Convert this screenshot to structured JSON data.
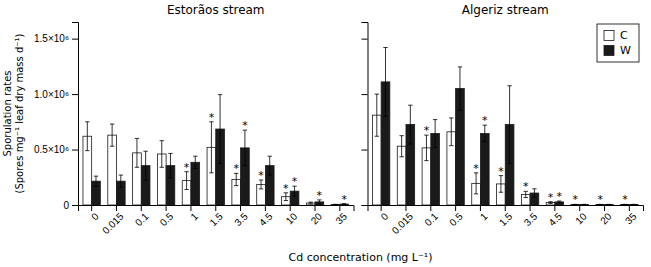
{
  "chart_data": [
    {
      "type": "bar",
      "title": "Estorãos stream",
      "xlabel": "Cd concentration (mg L⁻¹)",
      "ylabel": [
        "Sporulation rates",
        "(Spores mg⁻¹ leaf dry mass d⁻¹)"
      ],
      "categories": [
        "0",
        "0.015",
        "0.1",
        "0.5",
        "1",
        "1.5",
        "3.5",
        "4.5",
        "10",
        "20",
        "35"
      ],
      "series": [
        {
          "name": "C",
          "color": "#ffffff",
          "values": [
            620000,
            630000,
            470000,
            460000,
            220000,
            520000,
            230000,
            185000,
            75000,
            18000,
            4000
          ],
          "errors": [
            130000,
            100000,
            130000,
            120000,
            80000,
            230000,
            55000,
            40000,
            35000,
            8000,
            2000
          ],
          "annotations": [
            null,
            null,
            null,
            null,
            "*",
            "*",
            "*",
            "*",
            "*",
            null,
            null
          ]
        },
        {
          "name": "W",
          "color": "#1a1a1a",
          "values": [
            215000,
            215000,
            355000,
            355000,
            385000,
            685000,
            515000,
            355000,
            125000,
            28000,
            8000
          ],
          "errors": [
            45000,
            55000,
            130000,
            110000,
            55000,
            310000,
            160000,
            85000,
            45000,
            18000,
            4000
          ],
          "annotations": [
            null,
            null,
            null,
            null,
            null,
            null,
            "*",
            null,
            "*",
            "*",
            "*"
          ]
        }
      ],
      "ylim": [
        0,
        1650000
      ],
      "yticks": [
        0,
        {
          "value": 500000,
          "label": "0.5×10⁶"
        },
        {
          "value": 1000000,
          "label": "1.0×10⁶"
        },
        {
          "value": 1500000,
          "label": "1.5×10⁶"
        }
      ]
    },
    {
      "type": "bar",
      "title": "Algeriz stream",
      "categories": [
        "0",
        "0.015",
        "0.1",
        "0.5",
        "1",
        "1.5",
        "3.5",
        "4.5",
        "10",
        "20",
        "35"
      ],
      "series": [
        {
          "name": "C",
          "color": "#ffffff",
          "values": [
            810000,
            530000,
            515000,
            660000,
            195000,
            190000,
            95000,
            22000,
            4000,
            4000,
            4000
          ],
          "errors": [
            190000,
            95000,
            115000,
            125000,
            95000,
            75000,
            28000,
            8000,
            2000,
            2000,
            2000
          ],
          "annotations": [
            null,
            null,
            "*",
            null,
            "*",
            "*",
            "*",
            "*",
            "*",
            "*",
            "*"
          ]
        },
        {
          "name": "W",
          "color": "#1a1a1a",
          "values": [
            1110000,
            725000,
            645000,
            1050000,
            645000,
            725000,
            108000,
            28000,
            4000,
            4000,
            4000
          ],
          "errors": [
            310000,
            175000,
            125000,
            195000,
            75000,
            350000,
            38000,
            8000,
            2000,
            2000,
            2000
          ],
          "annotations": [
            null,
            null,
            null,
            null,
            "*",
            null,
            null,
            "*",
            null,
            null,
            null
          ]
        }
      ],
      "ylim": [
        0,
        1650000
      ],
      "yticks": [
        0,
        {
          "value": 500000,
          "label": "0.5×10⁶"
        },
        {
          "value": 1000000,
          "label": "1.0×10⁶"
        },
        {
          "value": 1500000,
          "label": "1.5×10⁶"
        }
      ],
      "tick_labels": "x",
      "legend": "upper right"
    }
  ]
}
